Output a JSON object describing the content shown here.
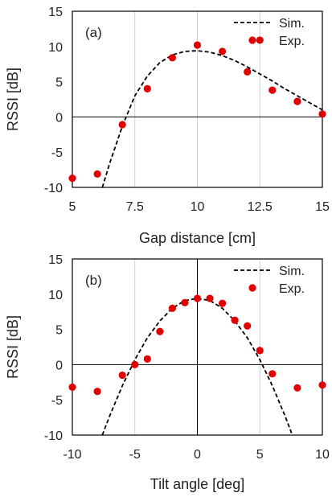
{
  "chart_data": [
    {
      "type": "scatter",
      "panel_label": "(a)",
      "xlabel": "Gap distance [cm]",
      "ylabel": "RSSI [dB]",
      "xlim": [
        5,
        15
      ],
      "ylim": [
        -10,
        15
      ],
      "xticks": [
        "5",
        "7.5",
        "10",
        "12.5",
        "15"
      ],
      "yticks": [
        "-10",
        "-5",
        "0",
        "5",
        "10",
        "15"
      ],
      "grid": "vertical",
      "legend_position": "top-right",
      "series": [
        {
          "name": "Sim.",
          "style": "dashed-line",
          "color": "#000000",
          "x": [
            6.2,
            6.5,
            7.0,
            7.5,
            8.0,
            8.5,
            9.0,
            9.5,
            10.0,
            10.5,
            11.0,
            11.5,
            12.0,
            12.5,
            13.0,
            13.5,
            14.0,
            14.5,
            15.0
          ],
          "y": [
            -10.0,
            -6.5,
            -1.3,
            3.0,
            5.8,
            7.7,
            8.8,
            9.3,
            9.4,
            9.2,
            8.7,
            8.0,
            7.1,
            6.1,
            5.1,
            4.0,
            3.0,
            2.0,
            1.0
          ]
        },
        {
          "name": "Exp.",
          "style": "markers",
          "color": "#e00000",
          "x": [
            5,
            6,
            7,
            8,
            9,
            10,
            11,
            12,
            12.5,
            13,
            14,
            15
          ],
          "y": [
            -8.7,
            -8.1,
            -1.1,
            4.0,
            8.4,
            10.2,
            9.3,
            6.4,
            10.9,
            3.8,
            2.2,
            0.4
          ]
        }
      ]
    },
    {
      "type": "scatter",
      "panel_label": "(b)",
      "xlabel": "Tilt angle [deg]",
      "ylabel": "RSSI [dB]",
      "xlim": [
        -10,
        10
      ],
      "ylim": [
        -10,
        15
      ],
      "xticks": [
        "-10",
        "-5",
        "0",
        "5",
        "10"
      ],
      "yticks": [
        "-10",
        "-5",
        "0",
        "5",
        "10",
        "15"
      ],
      "grid": "vertical",
      "legend_position": "top-right",
      "series": [
        {
          "name": "Sim.",
          "style": "dashed-line",
          "color": "#000000",
          "x": [
            -7.6,
            -7.0,
            -6.0,
            -5.0,
            -4.0,
            -3.0,
            -2.0,
            -1.0,
            0.0,
            1.0,
            2.0,
            3.0,
            4.0,
            5.0,
            6.0,
            7.0,
            7.6
          ],
          "y": [
            -10.0,
            -7.2,
            -3.0,
            0.7,
            3.8,
            6.2,
            8.0,
            9.1,
            9.4,
            9.1,
            8.0,
            6.2,
            3.8,
            0.7,
            -3.0,
            -7.2,
            -10.0
          ]
        },
        {
          "name": "Exp.",
          "style": "markers",
          "color": "#e00000",
          "x": [
            -10,
            -8,
            -6,
            -5,
            -4,
            -3,
            -2,
            -1,
            0,
            1,
            2,
            3,
            4,
            5,
            6,
            8,
            10
          ],
          "y": [
            -3.2,
            -3.8,
            -1.5,
            0.0,
            0.8,
            4.7,
            8.0,
            8.8,
            9.4,
            9.4,
            8.7,
            6.3,
            5.5,
            2.0,
            -1.3,
            -3.3,
            -2.9
          ]
        }
      ]
    }
  ]
}
